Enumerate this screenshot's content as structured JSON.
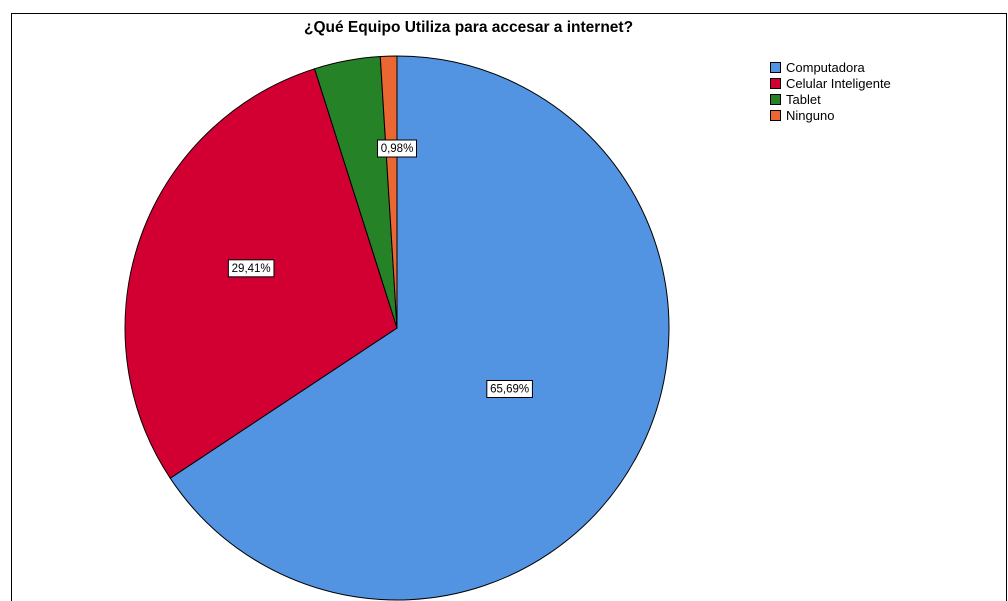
{
  "chart_data": {
    "type": "pie",
    "title": "¿Qué Equipo Utiliza para accesar a internet?",
    "categories": [
      "Computadora",
      "Celular Inteligente",
      "Tablet",
      "Ninguno"
    ],
    "values": [
      65.69,
      29.41,
      3.92,
      0.98
    ],
    "labels": [
      "65,69%",
      "29,41%",
      "",
      "0,98%"
    ],
    "colors": [
      "#5294e2",
      "#d20032",
      "#268226",
      "#ea6632"
    ],
    "start_angle": "12 o'clock",
    "direction": "clockwise",
    "legend": {
      "position": "top-right",
      "entries": [
        "Computadora",
        "Celular Inteligente",
        "Tablet",
        "Ninguno"
      ]
    }
  }
}
